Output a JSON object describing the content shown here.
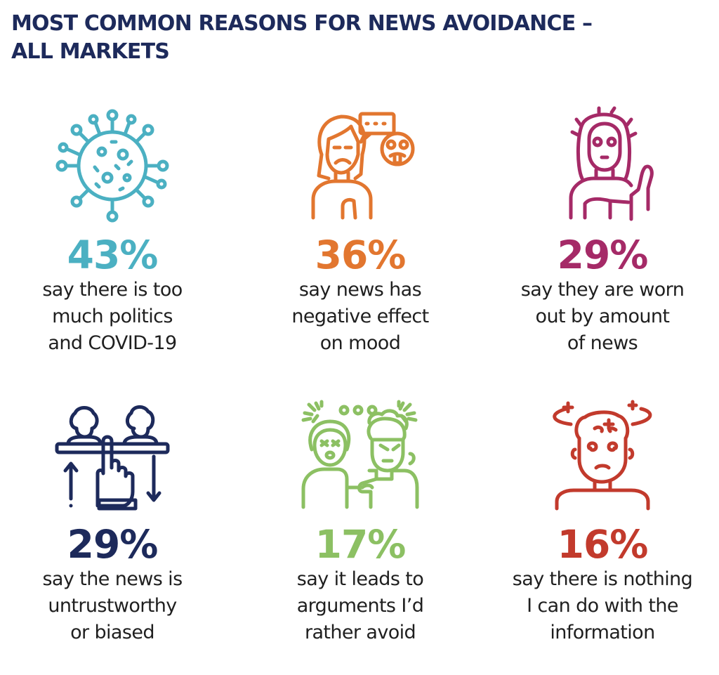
{
  "title": {
    "line1": "MOST COMMON REASONS FOR NEWS AVOIDANCE –",
    "line2": "ALL MARKETS"
  },
  "chart_data": {
    "type": "table",
    "title": "MOST COMMON REASONS FOR NEWS AVOIDANCE – ALL MARKETS",
    "unit": "%",
    "items": [
      {
        "value": 43,
        "label": "43%",
        "lines": [
          "say there is too",
          "much politics",
          "and COVID-19"
        ],
        "color": "#4bb0c2",
        "icon": "virus-icon"
      },
      {
        "value": 36,
        "label": "36%",
        "lines": [
          "say news has",
          "negative effect",
          "on mood"
        ],
        "color": "#e2762f",
        "icon": "sad-person-speech-bubble-icon"
      },
      {
        "value": 29,
        "label": "29%",
        "lines": [
          "say they are worn",
          "out by amount",
          "of news"
        ],
        "color": "#a52a67",
        "icon": "exhausted-person-icon"
      },
      {
        "value": 29,
        "label": "29%",
        "lines": [
          "say the news is",
          "untrustworthy",
          "or biased"
        ],
        "color": "#1d2a5b",
        "icon": "rating-hand-icon"
      },
      {
        "value": 17,
        "label": "17%",
        "lines": [
          "say it leads to",
          "arguments I’d",
          "rather avoid"
        ],
        "color": "#8cc063",
        "icon": "arguing-people-icon"
      },
      {
        "value": 16,
        "label": "16%",
        "lines": [
          "say there is nothing",
          "I can do with the",
          "information"
        ],
        "color": "#c23a2c",
        "icon": "dizzy-person-icon"
      }
    ]
  }
}
